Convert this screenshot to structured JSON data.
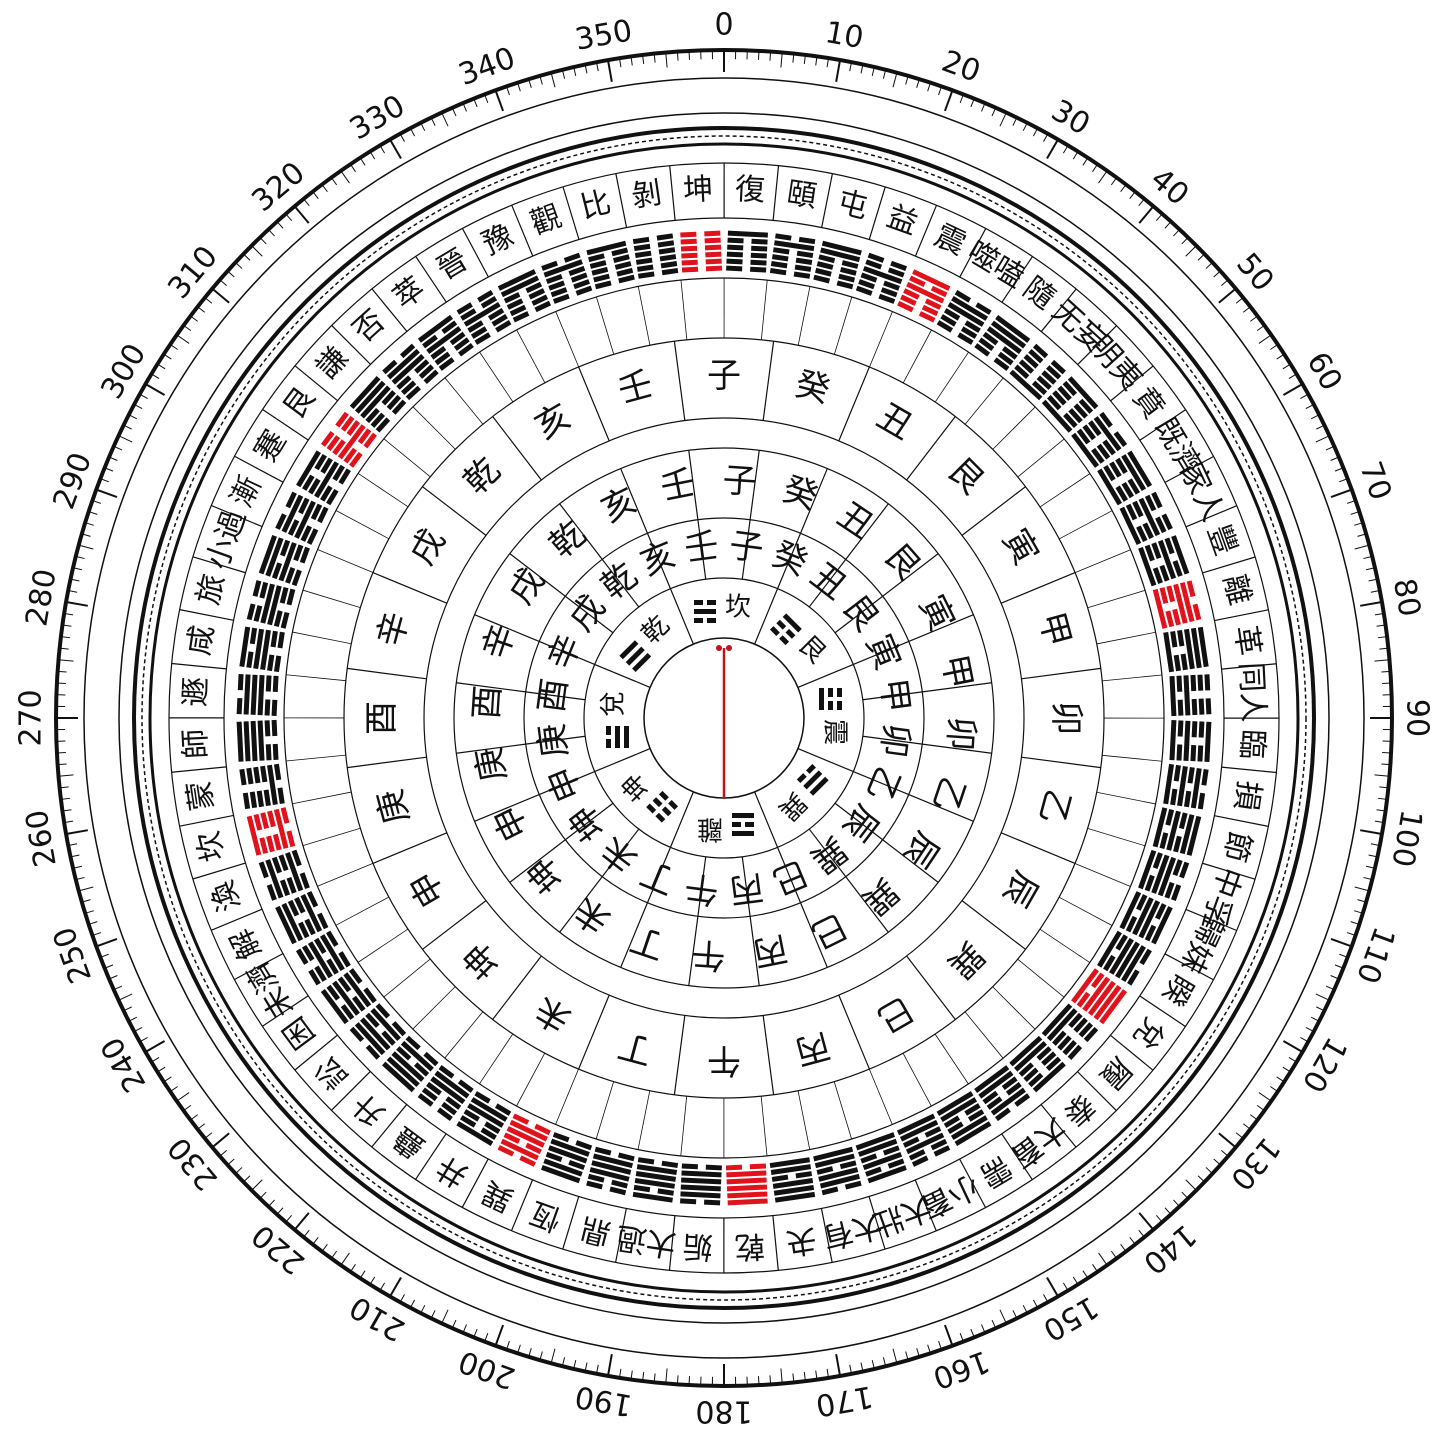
{
  "degree_labels": [
    0,
    10,
    20,
    30,
    40,
    50,
    60,
    70,
    80,
    90,
    100,
    110,
    120,
    130,
    140,
    150,
    160,
    170,
    180,
    190,
    200,
    210,
    220,
    230,
    240,
    250,
    260,
    270,
    280,
    290,
    300,
    310,
    320,
    330,
    340,
    350
  ],
  "hexagrams": [
    "坤",
    "復",
    "頤",
    "屯",
    "益",
    "震",
    "噬嗑",
    "隨",
    "无妄",
    "明夷",
    "賁",
    "既濟",
    "家人",
    "豐",
    "離",
    "革",
    "同人",
    "臨",
    "損",
    "節",
    "中孚",
    "歸妹",
    "睽",
    "兌",
    "履",
    "泰",
    "大畜",
    "需",
    "小畜",
    "大壯",
    "大有",
    "夬",
    "乾",
    "姤",
    "大過",
    "鼎",
    "恆",
    "巽",
    "井",
    "蠱",
    "升",
    "訟",
    "困",
    "未濟",
    "解",
    "渙",
    "坎",
    "蒙",
    "師",
    "遯",
    "咸",
    "旅",
    "小過",
    "漸",
    "蹇",
    "艮",
    "謙",
    "否",
    "萃",
    "晉",
    "豫",
    "觀",
    "比",
    "剝"
  ],
  "mountains": [
    "子",
    "癸",
    "丑",
    "艮",
    "寅",
    "甲",
    "卯",
    "乙",
    "辰",
    "巽",
    "巳",
    "丙",
    "午",
    "丁",
    "未",
    "坤",
    "申",
    "庚",
    "酉",
    "辛",
    "戌",
    "乾",
    "亥",
    "壬"
  ],
  "trigrams": [
    "坎",
    "艮",
    "震",
    "巽",
    "離",
    "坤",
    "兌",
    "乾"
  ]
}
